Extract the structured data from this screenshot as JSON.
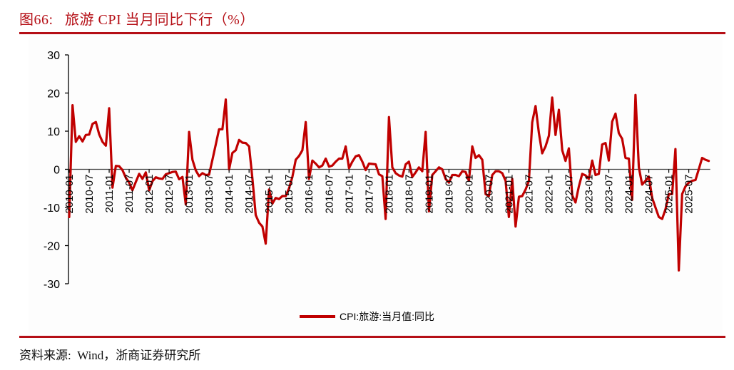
{
  "figure": {
    "title": "图66:   旅游 CPI 当月同比下行（%）",
    "source": "资料来源:  Wind，浙商证券研究所",
    "accent_color": "#b50f16",
    "line_color": "#c00000"
  },
  "legend": {
    "label": "CPI:旅游:当月值:同比"
  },
  "chart_data": {
    "type": "line",
    "title": "旅游 CPI 当月同比下行（%）",
    "xlabel": "",
    "ylabel": "%",
    "ylim": [
      -30,
      30
    ],
    "yticks": [
      30,
      20,
      10,
      0,
      -10,
      -20,
      -30
    ],
    "grid": false,
    "legend_position": "bottom",
    "xtick_labels": [
      "2010-01",
      "2010-07",
      "2011-01",
      "2011-07",
      "2012-01",
      "2012-07",
      "2013-01",
      "2013-07",
      "2014-01",
      "2014-07",
      "2015-01",
      "2015-07",
      "2016-01",
      "2016-07",
      "2017-01",
      "2017-07",
      "2018-01",
      "2018-07",
      "2019-01",
      "2019-07",
      "2020-01",
      "2020-07",
      "2021-01",
      "2021-07",
      "2022-01",
      "2022-07",
      "2023-01",
      "2023-07",
      "2024-01",
      "2024-07",
      "2025-01",
      "2025-07"
    ],
    "x_start": "2010-01",
    "x_end": "2025-10",
    "series": [
      {
        "name": "CPI:旅游:当月值:同比",
        "values": [
          -12.5,
          16.8,
          7.2,
          8.7,
          7.3,
          9.0,
          9.1,
          11.9,
          12.4,
          9.2,
          7.2,
          6.2,
          16.0,
          -4.8,
          0.9,
          0.8,
          -0.2,
          -2.2,
          -3.5,
          -5.5,
          -3.3,
          -1.2,
          -2.5,
          -0.8,
          -5.5,
          -3.1,
          -2.1,
          -2.4,
          -2.5,
          -1.3,
          -1.0,
          -0.7,
          -0.6,
          -2.6,
          -2.0,
          -9.2,
          9.8,
          2.5,
          -0.3,
          -1.8,
          -1.0,
          -1.5,
          -1.4,
          2.5,
          6.5,
          10.5,
          10.5,
          18.3,
          0.0,
          4.3,
          5.0,
          7.7,
          7.0,
          6.9,
          6.0,
          -2.5,
          -12.0,
          -14.0,
          -15.0,
          -19.5,
          -5.3,
          -9.0,
          -7.5,
          -7.8,
          -7.0,
          -7.0,
          -5.0,
          -2.0,
          2.5,
          3.5,
          5.0,
          12.4,
          -2.5,
          2.3,
          1.5,
          0.5,
          1.0,
          2.8,
          0.7,
          1.0,
          2.0,
          2.8,
          2.8,
          6.0,
          0.3,
          2.0,
          3.4,
          3.7,
          2.0,
          -0.2,
          1.5,
          1.4,
          1.3,
          -1.3,
          -1.8,
          -13.0,
          13.7,
          0.5,
          -1.0,
          -1.6,
          -1.9,
          1.3,
          2.0,
          -2.0,
          -0.8,
          0.5,
          -0.5,
          9.8,
          -11.0,
          -1.5,
          -0.5,
          0.5,
          0.0,
          -2.5,
          -3.5,
          -1.5,
          -1.5,
          -1.8,
          -0.5,
          -0.7,
          -3.0,
          6.0,
          3.0,
          3.7,
          2.5,
          -6.5,
          -7.0,
          -1.5,
          -0.5,
          -0.5,
          -1.0,
          -3.0,
          -12.5,
          -2.5,
          -15.0,
          -7.2,
          -7.0,
          -5.3,
          -3.0,
          12.3,
          16.6,
          9.5,
          4.2,
          6.0,
          8.8,
          18.8,
          9.0,
          15.6,
          5.0,
          2.2,
          5.5,
          -6.8,
          -8.7,
          -4.5,
          -1.2,
          -1.6,
          -2.5,
          2.3,
          -1.5,
          -1.2,
          6.5,
          6.9,
          2.3,
          12.5,
          14.6,
          9.5,
          8.0,
          3.0,
          2.8,
          -8.0,
          19.5,
          0.5,
          -4.0,
          -3.0,
          -1.9,
          -7.5,
          -10.0,
          -12.5,
          -13.0,
          -10.5,
          -6.5,
          -6.5,
          5.3,
          -26.5,
          -6.5,
          -4.5,
          -3.5,
          -3.0,
          -2.8,
          0.0,
          3.0,
          2.5,
          2.2
        ]
      }
    ]
  }
}
